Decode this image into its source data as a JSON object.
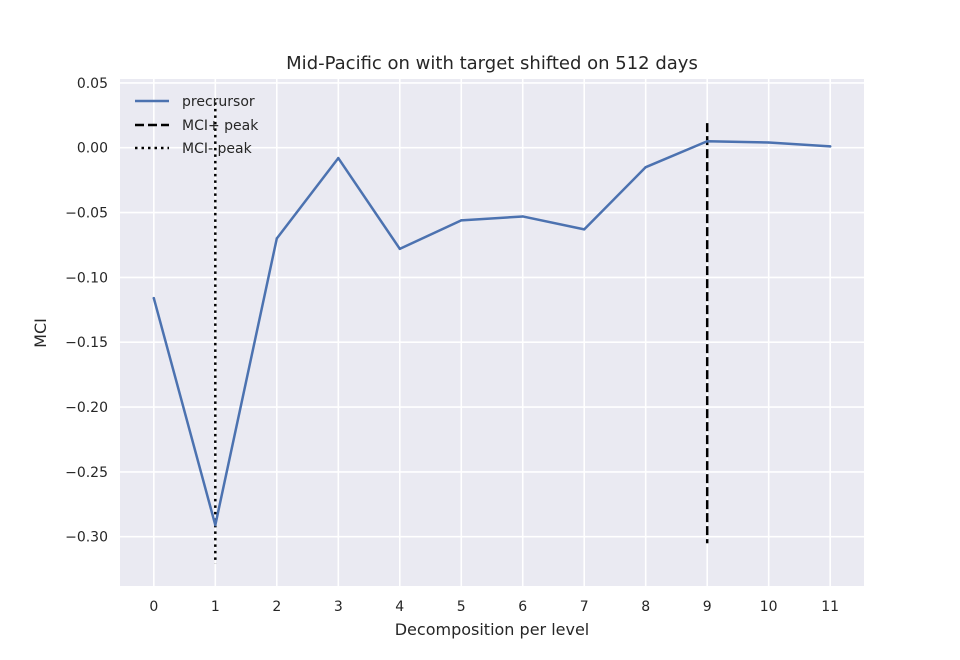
{
  "chart_data": {
    "type": "line",
    "title": "Mid-Pacific on with target shifted on 512 days",
    "xlabel": "Decomposition per level",
    "ylabel": "MCI",
    "x": [
      0,
      1,
      2,
      3,
      4,
      5,
      6,
      7,
      8,
      9,
      10,
      11
    ],
    "x_tick_labels": [
      "0",
      "1",
      "2",
      "3",
      "4",
      "5",
      "6",
      "7",
      "8",
      "9",
      "10",
      "11"
    ],
    "xlim": [
      -0.55,
      11.55
    ],
    "ylim": [
      -0.338,
      0.053
    ],
    "y_ticks": [
      0.05,
      0.0,
      -0.05,
      -0.1,
      -0.15,
      -0.2,
      -0.25,
      -0.3
    ],
    "y_tick_labels": [
      "0.05",
      "0.00",
      "−0.05",
      "−0.10",
      "−0.15",
      "−0.20",
      "−0.25",
      "−0.30"
    ],
    "series": [
      {
        "name": "precrursor",
        "style": "solid",
        "color": "#4c72b0",
        "values": [
          -0.116,
          -0.291,
          -0.07,
          -0.008,
          -0.078,
          -0.056,
          -0.053,
          -0.063,
          -0.015,
          0.005,
          0.004,
          0.001
        ]
      }
    ],
    "vlines": [
      {
        "name": "MCI+ peak",
        "x": 9,
        "y_range": [
          -0.305,
          0.019
        ],
        "style": "dashed",
        "color": "#000000"
      },
      {
        "name": "MCI- peak",
        "x": 1,
        "y_range": [
          -0.321,
          0.035
        ],
        "style": "dotted",
        "color": "#000000"
      }
    ],
    "legend": {
      "position": "top-left",
      "entries": [
        "precrursor",
        "MCI+ peak",
        "MCI- peak"
      ]
    },
    "grid": true,
    "colors": {
      "background": "#eaeaf2",
      "grid": "#ffffff",
      "line": "#4c72b0"
    }
  }
}
